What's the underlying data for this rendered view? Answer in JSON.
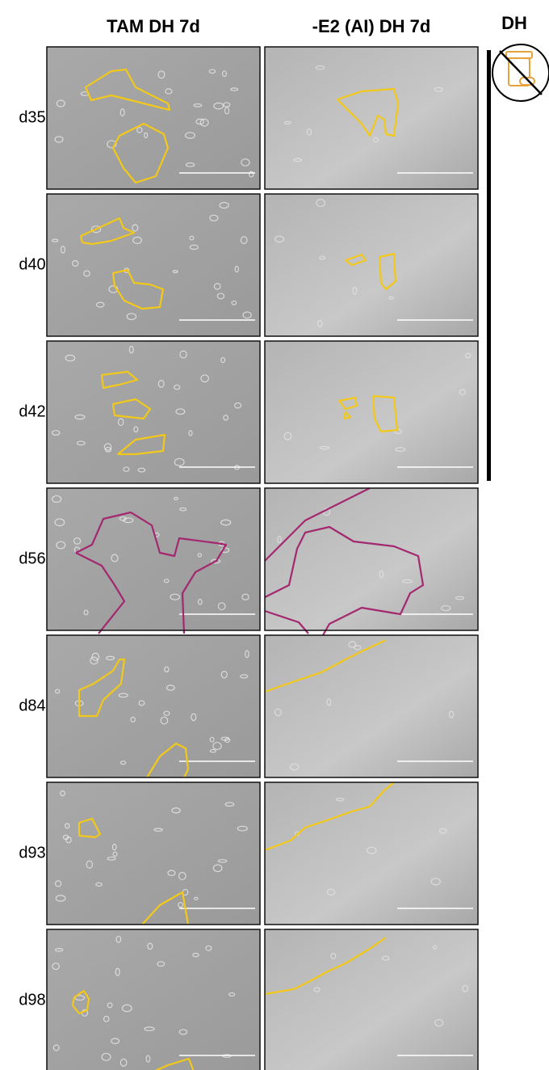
{
  "header": {
    "columns": [
      "TAM DH 7d",
      "-E2 (AI) DH 7d"
    ],
    "side_label": "DH"
  },
  "rows": [
    {
      "label": "d35"
    },
    {
      "label": "d40"
    },
    {
      "label": "d42"
    },
    {
      "label": "d56"
    },
    {
      "label": "d84"
    },
    {
      "label": "d93"
    },
    {
      "label": "d98"
    }
  ]
}
